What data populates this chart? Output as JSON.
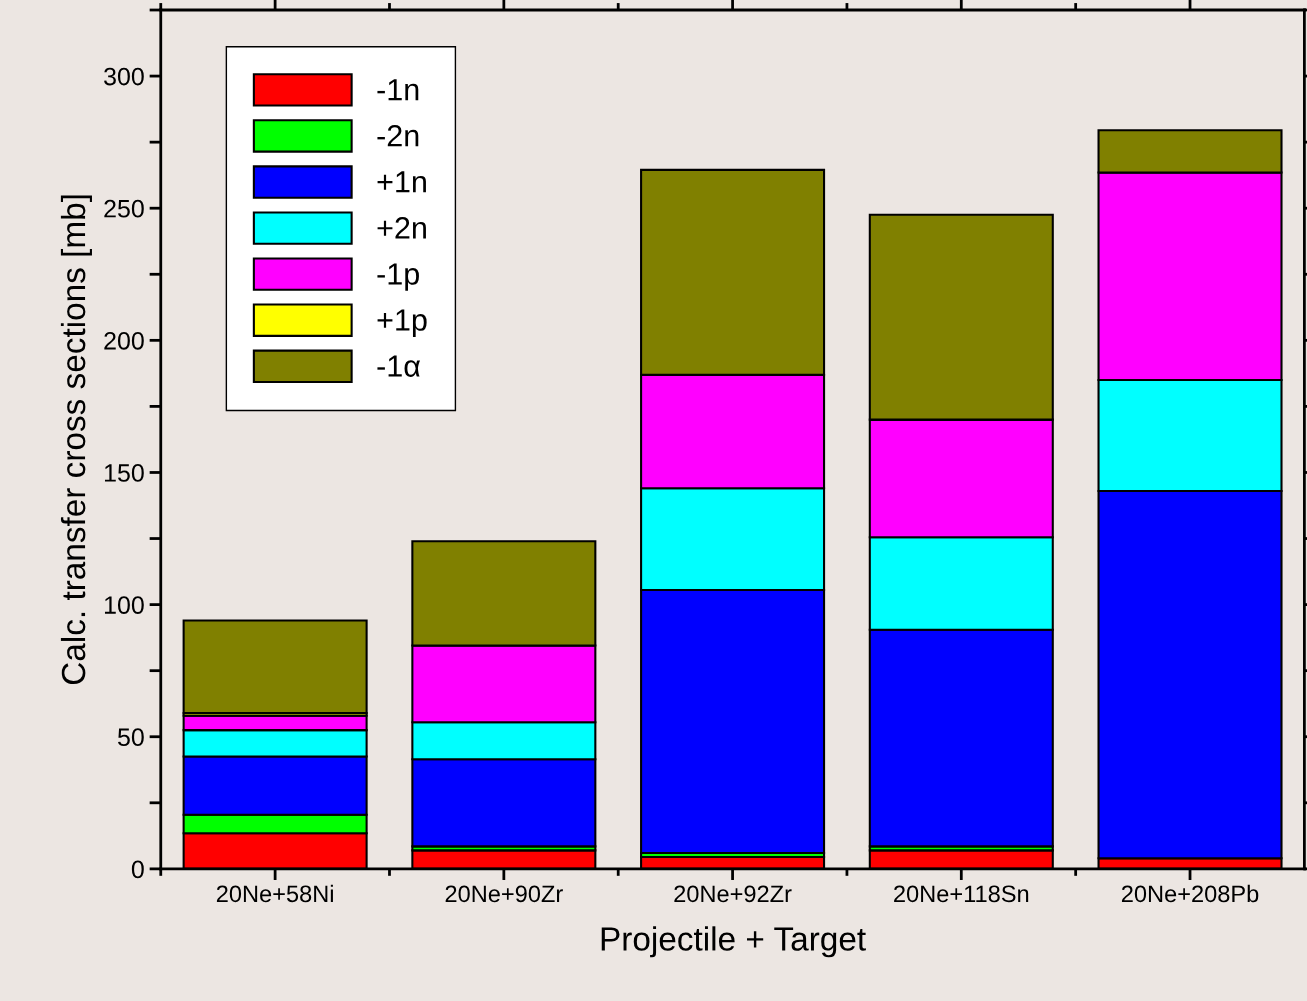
{
  "chart_data": {
    "type": "bar",
    "stacked": true,
    "xlabel": "Projectile + Target",
    "ylabel": "Calc. transfer cross sections [mb]",
    "categories": [
      "20Ne+58Ni",
      "20Ne+90Zr",
      "20Ne+92Zr",
      "20Ne+118Sn",
      "20Ne+208Pb"
    ],
    "series": [
      {
        "name": "-1n",
        "color": "#ff0000",
        "values": [
          13.5,
          7,
          4.5,
          7,
          4
        ]
      },
      {
        "name": "-2n",
        "color": "#00ff00",
        "values": [
          7,
          1.5,
          1.5,
          1.5,
          0
        ]
      },
      {
        "name": "+1n",
        "color": "#0000ff",
        "values": [
          22,
          33,
          99.5,
          82,
          139
        ]
      },
      {
        "name": "+2n",
        "color": "#00ffff",
        "values": [
          10,
          14,
          38.5,
          35,
          42
        ]
      },
      {
        "name": "-1p",
        "color": "#ff00ff",
        "values": [
          5.5,
          29,
          43,
          44.5,
          78.5
        ]
      },
      {
        "name": "+1p",
        "color": "#ffff00",
        "values": [
          1,
          0,
          0,
          0,
          0
        ]
      },
      {
        "name": "-1α",
        "color": "#808000",
        "values": [
          35,
          39.5,
          77.5,
          77.5,
          16
        ]
      }
    ],
    "ylim": [
      0,
      325
    ],
    "yticks": [
      0,
      {
        "value": 25,
        "label": null
      },
      50,
      {
        "value": 75,
        "label": null
      },
      100,
      {
        "value": 125,
        "label": null
      },
      150,
      {
        "value": 175,
        "label": null
      },
      200,
      {
        "value": 225,
        "label": null
      },
      250,
      {
        "value": 275,
        "label": null
      },
      300,
      {
        "value": 325,
        "label": null
      }
    ],
    "grid": false,
    "legend": "top left"
  }
}
